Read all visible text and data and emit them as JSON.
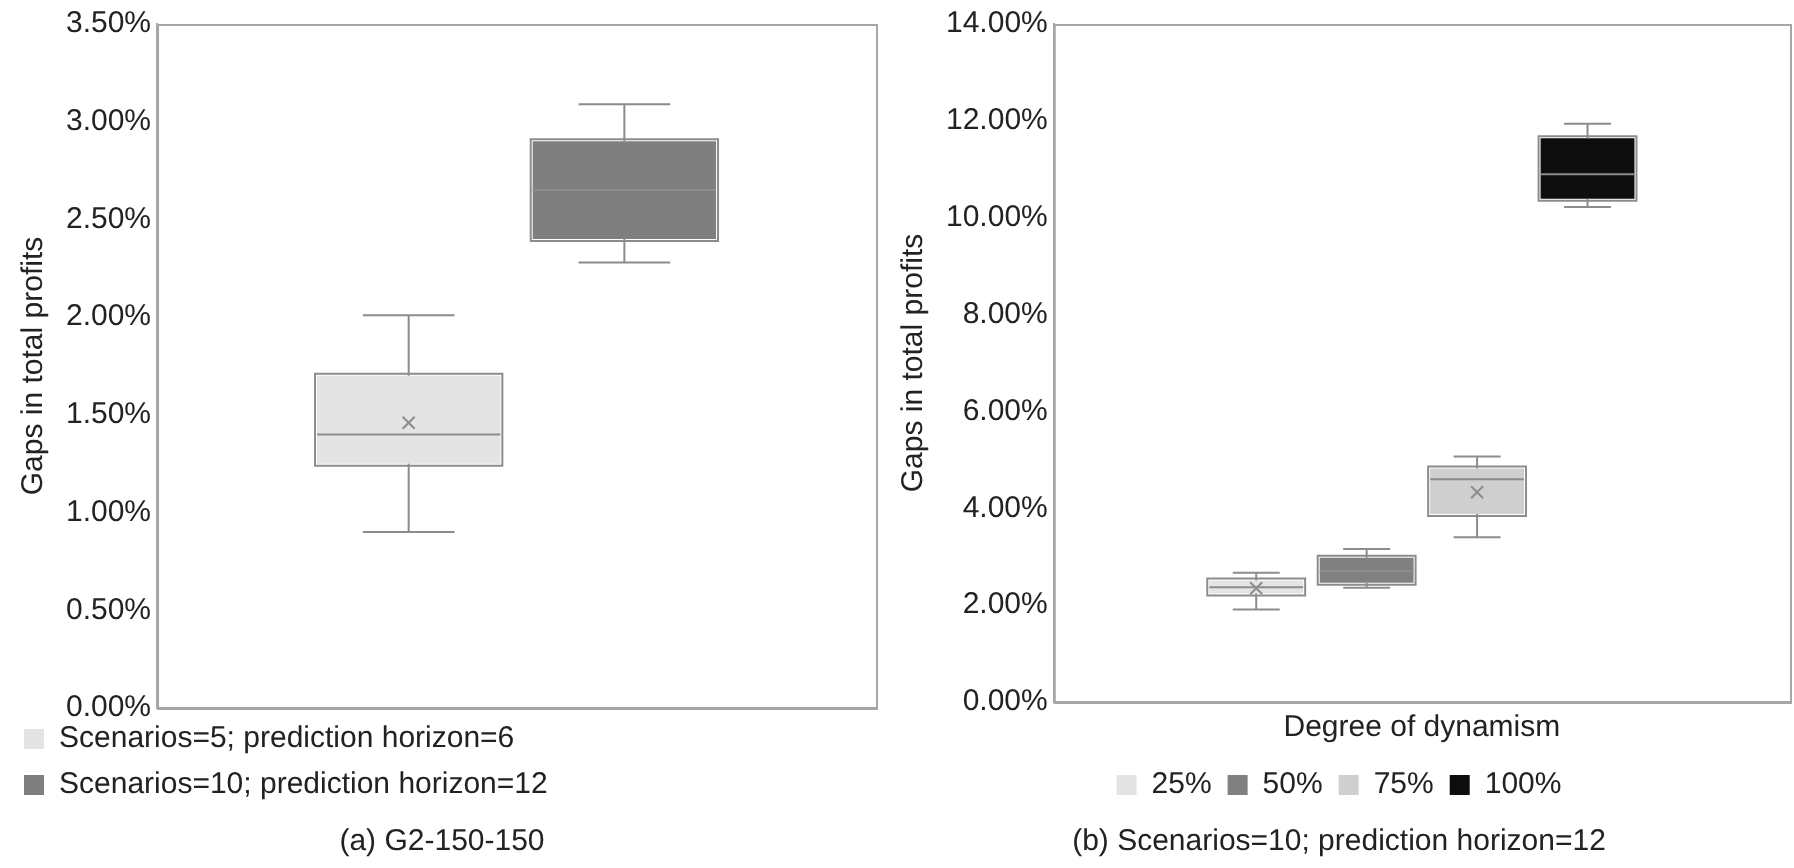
{
  "chart_data": [
    {
      "type": "box",
      "title": "(a) G2-150-150",
      "ylabel": "Gaps in total profits",
      "categories": [
        null
      ],
      "ylim": [
        0,
        3.5
      ],
      "yticks": [
        {
          "value": 0,
          "label": "0.00%"
        },
        {
          "value": 0.5,
          "label": "0.50%"
        },
        {
          "value": 1,
          "label": "1.00%"
        },
        {
          "value": 1.5,
          "label": "1.50%"
        },
        {
          "value": 2,
          "label": "2.00%"
        },
        {
          "value": 2.5,
          "label": "2.50%"
        },
        {
          "value": 3,
          "label": "3.00%"
        },
        {
          "value": 3.5,
          "label": "3.50%"
        }
      ],
      "grid": false,
      "legend": "bottom",
      "tick_labels": "y",
      "series": [
        {
          "name": "Scenarios=5; prediction horizon=6",
          "color": "#e4e4e4",
          "boxes": [
            {
              "low": 0.9,
              "q1": 1.25,
              "median": 1.4,
              "q3": 1.7,
              "high": 2.01,
              "mean": 1.46
            }
          ]
        },
        {
          "name": "Scenarios=10; prediction horizon=12",
          "color": "#7f7f7f",
          "boxes": [
            {
              "low": 2.28,
              "q1": 2.4,
              "median": 2.65,
              "q3": 2.9,
              "high": 3.09
            }
          ]
        }
      ]
    },
    {
      "type": "box",
      "title": "(b) Scenarios=10; prediction horizon=12",
      "xlabel": "Degree of dynamism",
      "ylabel": "Gaps in total profits",
      "categories": [
        null
      ],
      "ylim": [
        0,
        14
      ],
      "yticks": [
        {
          "value": 0,
          "label": "0.00%"
        },
        {
          "value": 2,
          "label": "2.00%"
        },
        {
          "value": 4,
          "label": "4.00%"
        },
        {
          "value": 6,
          "label": "6.00%"
        },
        {
          "value": 8,
          "label": "8.00%"
        },
        {
          "value": 10,
          "label": "10.00%"
        },
        {
          "value": 12,
          "label": "12.00%"
        },
        {
          "value": 14,
          "label": "14.00%"
        }
      ],
      "grid": false,
      "legend": "bottom",
      "tick_labels": "y",
      "series": [
        {
          "name": "25%",
          "color": "#e4e4e4",
          "boxes": [
            {
              "low": 1.91,
              "q1": 2.24,
              "median": 2.37,
              "q3": 2.51,
              "high": 2.67,
              "mean": 2.35
            }
          ]
        },
        {
          "name": "50%",
          "color": "#808080",
          "boxes": [
            {
              "low": 2.36,
              "q1": 2.46,
              "median": 2.7,
              "q3": 2.98,
              "high": 3.16
            }
          ]
        },
        {
          "name": "75%",
          "color": "#cfcfcf",
          "boxes": [
            {
              "low": 3.4,
              "q1": 3.88,
              "median": 4.6,
              "q3": 4.82,
              "high": 5.07,
              "mean": 4.33
            }
          ]
        },
        {
          "name": "100%",
          "color": "#0d0d0d",
          "boxes": [
            {
              "low": 10.22,
              "q1": 10.39,
              "median": 10.9,
              "q3": 11.64,
              "high": 11.94
            }
          ]
        }
      ]
    }
  ]
}
